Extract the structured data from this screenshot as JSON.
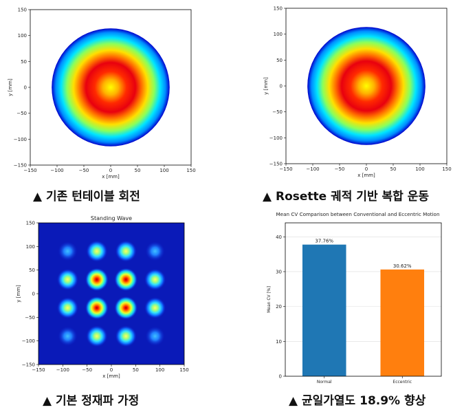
{
  "captions": {
    "top_left": "▲ 기존 턴테이블 회전",
    "top_right": "▲ Rosette 궤적 기반 복합 운동",
    "bottom_left": "▲ 기본 정재파 가정",
    "bottom_right": "▲ 균일가열도 18.9% 향상"
  },
  "chart_data": [
    {
      "type": "heatmap",
      "title": "",
      "xlabel": "x [mm]",
      "ylabel": "y [mm]",
      "xlim": [
        -150,
        150
      ],
      "ylim": [
        -150,
        150
      ],
      "xticks": [
        -150,
        -100,
        -50,
        0,
        50,
        100,
        150
      ],
      "yticks": [
        -150,
        -100,
        -50,
        0,
        50,
        100,
        150
      ],
      "pattern": "radial",
      "radius_mm": 110,
      "peak_radius_mm": 0,
      "colormap": "jet"
    },
    {
      "type": "heatmap",
      "title": "",
      "xlabel": "x [mm]",
      "ylabel": "y [mm]",
      "xlim": [
        -150,
        150
      ],
      "ylim": [
        -150,
        150
      ],
      "xticks": [
        -150,
        -100,
        -50,
        0,
        50,
        100,
        150
      ],
      "yticks": [
        -150,
        -100,
        -50,
        0,
        50,
        100,
        150
      ],
      "pattern": "radial",
      "radius_mm": 110,
      "peak_radius_mm": 0,
      "colormap": "jet"
    },
    {
      "type": "heatmap",
      "title": "Standing Wave",
      "xlabel": "x [mm]",
      "ylabel": "y [mm]",
      "xlim": [
        -150,
        150
      ],
      "ylim": [
        -150,
        150
      ],
      "xticks": [
        -150,
        -100,
        -50,
        0,
        50,
        100,
        150
      ],
      "yticks": [
        -150,
        -100,
        -50,
        0,
        50,
        100,
        150
      ],
      "pattern": "standing-wave",
      "node_positions_mm": [
        -90,
        -30,
        30,
        90
      ],
      "colormap": "jet"
    },
    {
      "type": "bar",
      "title": "Mean CV Comparison between Conventional and Eccentric Motion",
      "xlabel": "",
      "ylabel": "Mean CV [%]",
      "categories": [
        "Normal",
        "Eccentric"
      ],
      "values": [
        37.76,
        30.62
      ],
      "value_labels": [
        "37.76%",
        "30.62%"
      ],
      "colors": [
        "#1f77b4",
        "#ff7f0e"
      ],
      "ylim": [
        0,
        44
      ],
      "yticks": [
        0,
        10,
        20,
        30,
        40
      ],
      "grid": true
    }
  ]
}
